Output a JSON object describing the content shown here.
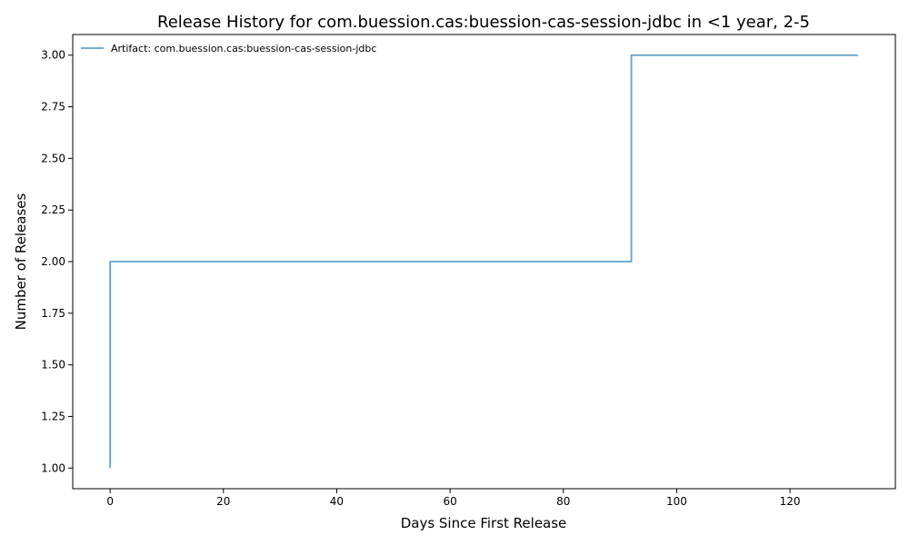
{
  "chart_data": {
    "type": "line",
    "step": true,
    "title": "Release History for com.buession.cas:buession-cas-session-jdbc in <1 year, 2-5",
    "xlabel": "Days Since First Release",
    "ylabel": "Number of Releases",
    "xlim": [
      -6.6,
      138.6
    ],
    "ylim": [
      0.9,
      3.1
    ],
    "xticks": [
      0,
      20,
      40,
      60,
      80,
      100,
      120
    ],
    "xtick_labels": [
      "0",
      "20",
      "40",
      "60",
      "80",
      "100",
      "120"
    ],
    "yticks": [
      1.0,
      1.25,
      1.5,
      1.75,
      2.0,
      2.25,
      2.5,
      2.75,
      3.0
    ],
    "ytick_labels": [
      "1.00",
      "1.25",
      "1.50",
      "1.75",
      "2.00",
      "2.25",
      "2.50",
      "2.75",
      "3.00"
    ],
    "grid": false,
    "legend_position": "top-left",
    "series": [
      {
        "name": "Artifact: com.buession.cas:buession-cas-session-jdbc",
        "color": "#5fa2c8",
        "x": [
          0,
          0,
          92,
          132
        ],
        "y": [
          1,
          2,
          3,
          3
        ]
      }
    ]
  }
}
